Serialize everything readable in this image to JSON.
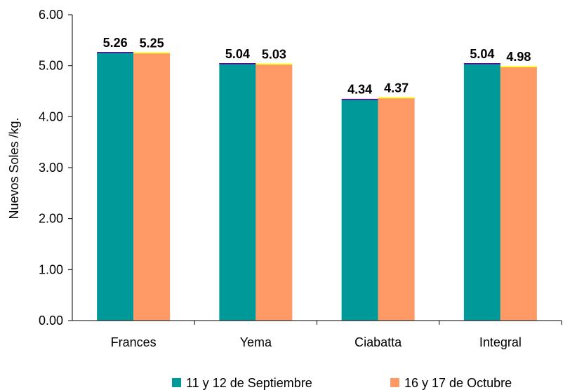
{
  "chart_data": {
    "type": "bar",
    "title": "",
    "xlabel": "",
    "ylabel": "Nuevos Soles /kg.",
    "ylim": [
      0,
      6
    ],
    "ytick_step": 1,
    "ytick_labels": [
      "0.00",
      "1.00",
      "2.00",
      "3.00",
      "4.00",
      "5.00",
      "6.00"
    ],
    "categories": [
      "Frances",
      "Yema",
      "Ciabatta",
      "Integral"
    ],
    "series": [
      {
        "name": "11 y 12 de Septiembre",
        "color": "#009999",
        "values": [
          5.26,
          5.04,
          4.34,
          5.04
        ],
        "labels": [
          "5.26",
          "5.04",
          "4.34",
          "5.04"
        ]
      },
      {
        "name": "16 y 17 de Octubre",
        "color": "#FF9966",
        "values": [
          5.25,
          5.03,
          4.37,
          4.98
        ],
        "labels": [
          "5.25",
          "5.03",
          "4.37",
          "4.98"
        ]
      }
    ],
    "grid": false,
    "legend_position": "bottom"
  }
}
